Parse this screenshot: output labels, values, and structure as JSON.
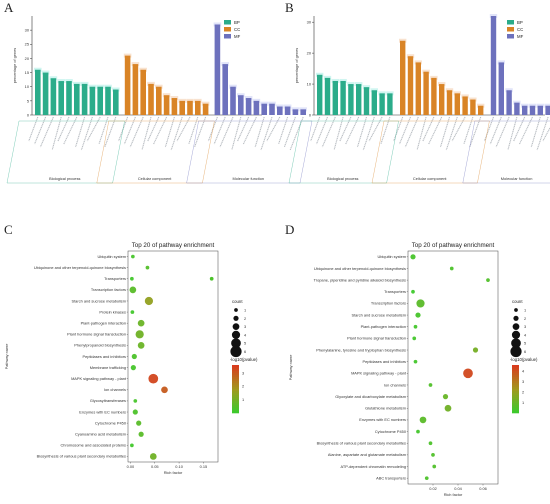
{
  "panels": {
    "a": "A",
    "b": "B",
    "c": "C",
    "d": "D"
  },
  "colors": {
    "bp": "#2bac8a",
    "cc": "#d98426",
    "mf": "#6d71bd",
    "bp_band": "#a8ece4",
    "cc_band": "#f2cba8",
    "mf_band": "#c9cdf4",
    "gradient_high": "#d93c1e",
    "gradient_mid": "#9e9a1e",
    "gradient_low": "#35cd2d"
  },
  "chart_data": [
    {
      "id": "A",
      "type": "bar",
      "ylabel": "percentage of genes",
      "ylim": [
        0,
        35
      ],
      "yticks": [
        0,
        5,
        10,
        15,
        20,
        25,
        30
      ],
      "legend": [
        "BP",
        "CC",
        "MF"
      ],
      "legend_position": "top-right",
      "groups": [
        "Biological process",
        "Cellular component",
        "Molecular function"
      ],
      "series": [
        {
          "name": "BP",
          "values": [
            16,
            15,
            13,
            12,
            12,
            11,
            11,
            10,
            10,
            10,
            9
          ]
        },
        {
          "name": "CC",
          "values": [
            21,
            18,
            16,
            11,
            10,
            7,
            6,
            5,
            5,
            5,
            4
          ]
        },
        {
          "name": "MF",
          "values": [
            32,
            18,
            10,
            7,
            6,
            5,
            4,
            4,
            3,
            3,
            2,
            2
          ]
        }
      ]
    },
    {
      "id": "B",
      "type": "bar",
      "ylabel": "percentage of genes",
      "ylim": [
        0,
        32
      ],
      "yticks": [
        0,
        10,
        20,
        30
      ],
      "legend": [
        "BP",
        "CC",
        "MF"
      ],
      "legend_position": "top-right",
      "groups": [
        "Biological process",
        "Cellular component",
        "Molecular function"
      ],
      "series": [
        {
          "name": "BP",
          "values": [
            13,
            12,
            11,
            11,
            10,
            10,
            9,
            8,
            7,
            7
          ]
        },
        {
          "name": "CC",
          "values": [
            24,
            19,
            17,
            14,
            12,
            10,
            8,
            7,
            6,
            5,
            3
          ]
        },
        {
          "name": "MF",
          "values": [
            32,
            17,
            8,
            4,
            3,
            3,
            3,
            3,
            3,
            3
          ]
        }
      ]
    },
    {
      "id": "C",
      "type": "scatter",
      "title": "Top 20 of pathway enrichment",
      "xlabel": "Rich factor",
      "ylabel": "Pathway name",
      "xlim": [
        -0.005,
        0.18
      ],
      "xticks": [
        "0.00",
        "0.05",
        "0.10",
        "0.15"
      ],
      "xtick_values": [
        0,
        0.05,
        0.1,
        0.15
      ],
      "size_legend_title": "count",
      "size_legend": [
        "1",
        "2",
        "3",
        "4",
        "5",
        "6"
      ],
      "color_legend_title": "-log10(pvalue)",
      "color_legend_ticks": [
        "3",
        "2",
        "1"
      ],
      "color_range": [
        0,
        3.6
      ],
      "points": [
        {
          "pathway": "Ubiquitin system",
          "rich": 0.005,
          "count": 1,
          "logp": 0.3
        },
        {
          "pathway": "Ubiquinone and other terpenoid-quinone biosynthesis",
          "rich": 0.035,
          "count": 1,
          "logp": 0.5
        },
        {
          "pathway": "Transporters",
          "rich": 0.003,
          "count": 1,
          "logp": 0.2
        },
        {
          "pathway": "Transcription factors",
          "rich": 0.005,
          "count": 3,
          "logp": 0.6
        },
        {
          "pathway": "Starch and sucrose metabolism",
          "rich": 0.038,
          "count": 4,
          "logp": 1.6
        },
        {
          "pathway": "Protein kinases",
          "rich": 0.004,
          "count": 1,
          "logp": 0.2
        },
        {
          "pathway": "Plant-pathogen interaction",
          "rich": 0.022,
          "count": 3,
          "logp": 0.9
        },
        {
          "pathway": "Plant hormone signal transduction",
          "rich": 0.019,
          "count": 4,
          "logp": 1.0
        },
        {
          "pathway": "Phenylpropanoid biosynthesis",
          "rich": 0.022,
          "count": 3,
          "logp": 0.9
        },
        {
          "pathway": "Peptidases and inhibitors",
          "rich": 0.008,
          "count": 2,
          "logp": 0.4
        },
        {
          "pathway": "Membrane trafficking",
          "rich": 0.006,
          "count": 2,
          "logp": 0.3
        },
        {
          "pathway": "MAPK signaling pathway - plant",
          "rich": 0.047,
          "count": 5,
          "logp": 3.4
        },
        {
          "pathway": "Ion channels",
          "rich": 0.07,
          "count": 3,
          "logp": 3.0
        },
        {
          "pathway": "Glycosyltransferases",
          "rich": 0.01,
          "count": 1,
          "logp": 0.3
        },
        {
          "pathway": "Enzymes with EC numbers",
          "rich": 0.01,
          "count": 2,
          "logp": 0.4
        },
        {
          "pathway": "Cytochrome P450",
          "rich": 0.017,
          "count": 2,
          "logp": 0.6
        },
        {
          "pathway": "Cyanoamino acid metabolism",
          "rich": 0.022,
          "count": 2,
          "logp": 0.6
        },
        {
          "pathway": "Chromosome and associated proteins",
          "rich": 0.003,
          "count": 1,
          "logp": 0.2
        },
        {
          "pathway": "Biosynthesis of various plant secondary metabolites",
          "rich": 0.047,
          "count": 3,
          "logp": 1.0
        }
      ],
      "extra_points": [
        {
          "rich": 0.167,
          "row": 2,
          "count": 1,
          "logp": 0.4
        }
      ]
    },
    {
      "id": "D",
      "type": "scatter",
      "title": "Top 20 of pathway enrichment",
      "xlabel": "Rich factor",
      "ylabel": "Pathway name",
      "xlim": [
        0.0,
        0.072
      ],
      "xticks": [
        "0.02",
        "0.04",
        "0.06"
      ],
      "xtick_values": [
        0.02,
        0.04,
        0.06
      ],
      "size_legend_title": "count",
      "size_legend": [
        "1",
        "2",
        "3",
        "4",
        "5",
        "6"
      ],
      "color_legend_title": "-log10(pvalue)",
      "color_legend_ticks": [
        "4",
        "3",
        "2",
        "1"
      ],
      "color_range": [
        0,
        4.6
      ],
      "points": [
        {
          "pathway": "Ubiquitin system",
          "rich": 0.004,
          "count": 2,
          "logp": 0.4
        },
        {
          "pathway": "Ubiquinone and other terpenoid-quinone biosynthesis",
          "rich": 0.035,
          "count": 1,
          "logp": 0.5
        },
        {
          "pathway": "Tropane, piperidine and pyridine alkaloid biosynthesis",
          "rich": 0.064,
          "count": 1,
          "logp": 0.6
        },
        {
          "pathway": "Transporters",
          "rich": 0.004,
          "count": 1,
          "logp": 0.2
        },
        {
          "pathway": "Transcription factors",
          "rich": 0.01,
          "count": 4,
          "logp": 0.8
        },
        {
          "pathway": "Starch and sucrose metabolism",
          "rich": 0.008,
          "count": 2,
          "logp": 0.4
        },
        {
          "pathway": "Plant-pathogen interaction",
          "rich": 0.006,
          "count": 1,
          "logp": 0.3
        },
        {
          "pathway": "Plant hormone signal transduction",
          "rich": 0.005,
          "count": 1,
          "logp": 0.3
        },
        {
          "pathway": "Phenylalanine, tyrosine and tryptophan biosynthesis",
          "rich": 0.054,
          "count": 2,
          "logp": 1.4
        },
        {
          "pathway": "Peptidases and inhibitors",
          "rich": 0.006,
          "count": 1,
          "logp": 0.3
        },
        {
          "pathway": "MAPK signaling pathway - plant",
          "rich": 0.048,
          "count": 5,
          "logp": 4.3
        },
        {
          "pathway": "Ion channels",
          "rich": 0.018,
          "count": 1,
          "logp": 0.6
        },
        {
          "pathway": "Glyoxylate and dicarboxylate metabolism",
          "rich": 0.03,
          "count": 2,
          "logp": 1.1
        },
        {
          "pathway": "Glutathione metabolism",
          "rich": 0.032,
          "count": 3,
          "logp": 1.3
        },
        {
          "pathway": "Enzymes with EC numbers",
          "rich": 0.012,
          "count": 3,
          "logp": 0.8
        },
        {
          "pathway": "Cytochrome P450",
          "rich": 0.008,
          "count": 1,
          "logp": 0.3
        },
        {
          "pathway": "Biosynthesis of various plant secondary metabolites",
          "rich": 0.018,
          "count": 1,
          "logp": 0.5
        },
        {
          "pathway": "Alanine, aspartate and glutamate metabolism",
          "rich": 0.02,
          "count": 1,
          "logp": 0.6
        },
        {
          "pathway": "ATP-dependent chromatin remodeling",
          "rich": 0.021,
          "count": 1,
          "logp": 0.6
        },
        {
          "pathway": "ABC transporters",
          "rich": 0.015,
          "count": 1,
          "logp": 0.5
        }
      ]
    }
  ]
}
